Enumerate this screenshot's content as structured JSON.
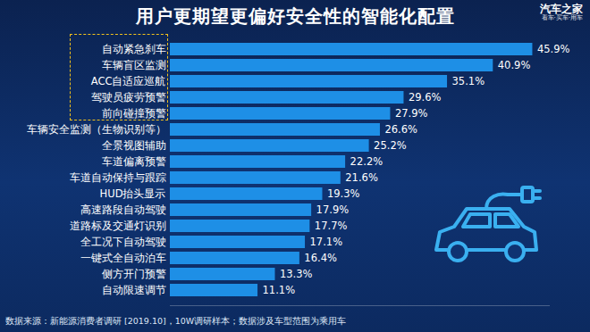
{
  "chart_data": {
    "type": "bar",
    "orientation": "horizontal",
    "title": "用户更期望更偏好安全性的智能化配置",
    "logo": "汽车之家",
    "logo_tagline": "看车·买车·用车",
    "source": "数据来源：新能源消费者调研 [2019.10]，10W调研样本；数据涉及车型范围为乘用车",
    "categories": [
      "自动紧急刹车",
      "车辆盲区监测",
      "ACC自适应巡航",
      "驾驶员疲劳预警",
      "前向碰撞预警",
      "车辆安全监测（生物识别等）",
      "全景视图辅助",
      "车道偏离预警",
      "车道自动保持与跟踪",
      "HUD抬头显示",
      "高速路段自动驾驶",
      "道路标及交通灯识别",
      "全工况下自动驾驶",
      "一键式全自动泊车",
      "侧方开门预警",
      "自动限速调节"
    ],
    "values": [
      45.9,
      40.9,
      35.1,
      29.6,
      27.9,
      26.6,
      25.2,
      22.2,
      21.6,
      19.3,
      17.9,
      17.7,
      17.1,
      16.4,
      13.3,
      11.1
    ],
    "value_labels": [
      "45.9%",
      "40.9%",
      "35.1%",
      "29.6%",
      "27.9%",
      "26.6%",
      "25.2%",
      "22.2%",
      "21.6%",
      "19.3%",
      "17.9%",
      "17.7%",
      "17.1%",
      "16.4%",
      "13.3%",
      "11.1%"
    ],
    "color": "#1e8fe6",
    "xlim": [
      0,
      48
    ],
    "xticks": [],
    "tick_labels": "y",
    "data_labels": true,
    "grid": false
  }
}
